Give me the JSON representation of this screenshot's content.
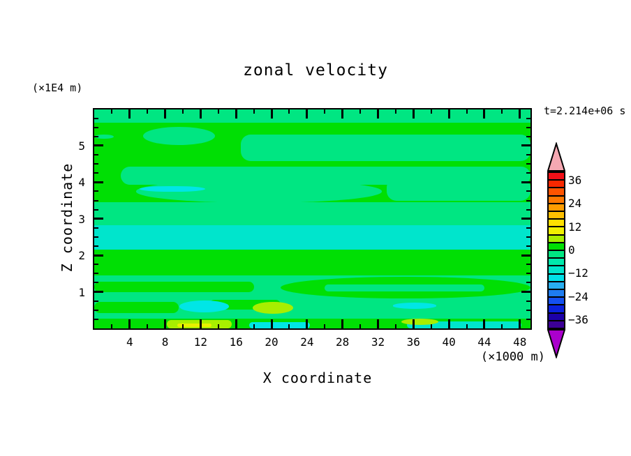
{
  "title": "zonal velocity",
  "left_unit_label": "(×1E4 m)",
  "time_label": "t=2.214e+06 s",
  "x_axis": {
    "label": "X coordinate",
    "unit": "(×1000 m)",
    "range": [
      0,
      49.2
    ],
    "minor_step": 2,
    "major_step": 4,
    "tick_labels": [
      4,
      8,
      12,
      16,
      20,
      24,
      28,
      32,
      36,
      40,
      44,
      48
    ]
  },
  "z_axis": {
    "label": "Z coordinate",
    "range": [
      0,
      5.99
    ],
    "minor_step": 0.25,
    "major_step": 1,
    "tick_labels": [
      1,
      2,
      3,
      4,
      5
    ]
  },
  "colorbar": {
    "labels": [
      36,
      24,
      12,
      0,
      -12,
      -24,
      -36
    ],
    "level_step": 4,
    "top_arrow_color": "#F5A8B2",
    "bottom_arrow_color": "#AA00CC",
    "segments": [
      {
        "range": [
          36,
          40
        ],
        "color": "#F01018"
      },
      {
        "range": [
          32,
          36
        ],
        "color": "#F82800"
      },
      {
        "range": [
          28,
          32
        ],
        "color": "#FF5400"
      },
      {
        "range": [
          24,
          28
        ],
        "color": "#FF7800"
      },
      {
        "range": [
          20,
          24
        ],
        "color": "#FF9C00"
      },
      {
        "range": [
          16,
          20
        ],
        "color": "#FFC000"
      },
      {
        "range": [
          12,
          16
        ],
        "color": "#FFE000"
      },
      {
        "range": [
          8,
          12
        ],
        "color": "#F0F000"
      },
      {
        "range": [
          4,
          8
        ],
        "color": "#A8EE00"
      },
      {
        "range": [
          0,
          4
        ],
        "color": "#00DF04"
      },
      {
        "range": [
          -4,
          0
        ],
        "color": "#00E682"
      },
      {
        "range": [
          -8,
          -4
        ],
        "color": "#00E9AC"
      },
      {
        "range": [
          -12,
          -8
        ],
        "color": "#00E5CC"
      },
      {
        "range": [
          -16,
          -12
        ],
        "color": "#00E0E8"
      },
      {
        "range": [
          -20,
          -16
        ],
        "color": "#28AEF0"
      },
      {
        "range": [
          -24,
          -20
        ],
        "color": "#1E7CF0"
      },
      {
        "range": [
          -28,
          -24
        ],
        "color": "#1450F0"
      },
      {
        "range": [
          -32,
          -28
        ],
        "color": "#0A20DC"
      },
      {
        "range": [
          -36,
          -32
        ],
        "color": "#1C00A8"
      },
      {
        "range": [
          -40,
          -36
        ],
        "color": "#3C0096"
      }
    ]
  },
  "chart_data": {
    "type": "heatmap",
    "title": "zonal velocity",
    "xlabel": "X coordinate",
    "ylabel": "Z coordinate",
    "x_unit": "(×1000 m)",
    "y_unit": "(×1E4 m)",
    "time_annotation": "t=2.214e+06 s",
    "x_range": [
      0,
      49.2
    ],
    "z_range": [
      0,
      5.99
    ],
    "contour_interval": 4,
    "colorbar_labeled_levels": [
      36,
      24,
      12,
      0,
      -12,
      -24,
      -36
    ],
    "x_columns": [
      2,
      6,
      10,
      14,
      18,
      22,
      26,
      30,
      34,
      38,
      42,
      46
    ],
    "z_rows": [
      5.8,
      5.2,
      4.7,
      4.2,
      3.6,
      3.1,
      2.5,
      1.9,
      1.3,
      0.9,
      0.5,
      0.1
    ],
    "approx_values_mps": [
      [
        -2,
        -2,
        -2,
        -2,
        -2,
        -2,
        -2,
        -2,
        -2,
        -2,
        -2,
        -2
      ],
      [
        2,
        -2,
        -2,
        2,
        2,
        2,
        2,
        2,
        2,
        2,
        2,
        2
      ],
      [
        2,
        2,
        2,
        2,
        -2,
        -2,
        -2,
        -2,
        -2,
        -2,
        -2,
        -2
      ],
      [
        -2,
        -2,
        -2,
        -2,
        -2,
        -2,
        -2,
        -2,
        -2,
        -2,
        -2,
        -2
      ],
      [
        2,
        -14,
        -14,
        -2,
        -2,
        -2,
        -2,
        -2,
        -2,
        -2,
        -2,
        -2
      ],
      [
        -2,
        -2,
        -2,
        -2,
        -2,
        -2,
        -2,
        -2,
        -2,
        -2,
        -2,
        -2
      ],
      [
        -10,
        -10,
        -10,
        -10,
        -10,
        -10,
        -10,
        -10,
        -10,
        -10,
        -10,
        -10
      ],
      [
        2,
        2,
        2,
        2,
        2,
        2,
        2,
        2,
        2,
        2,
        2,
        2
      ],
      [
        2,
        2,
        2,
        2,
        -2,
        2,
        2,
        2,
        2,
        2,
        2,
        2
      ],
      [
        -2,
        -2,
        -2,
        -2,
        -2,
        2,
        2,
        2,
        2,
        2,
        2,
        2
      ],
      [
        2,
        2,
        -14,
        -14,
        10,
        10,
        -2,
        -2,
        -14,
        -14,
        -2,
        -2
      ],
      [
        2,
        2,
        10,
        10,
        -14,
        -14,
        2,
        2,
        10,
        10,
        -10,
        -10
      ]
    ],
    "regions": [
      {
        "x": [
          0,
          49.2
        ],
        "z": [
          5.62,
          5.99
        ],
        "value_range": [
          -4,
          0
        ],
        "color": "#00E682",
        "shape": "strip"
      },
      {
        "x": [
          5.5,
          13.6
        ],
        "z": [
          5.02,
          5.52
        ],
        "value_range": [
          -4,
          0
        ],
        "color": "#00E682",
        "shape": "ellipse"
      },
      {
        "x": [
          16.5,
          49.2
        ],
        "z": [
          4.58,
          5.3
        ],
        "value_range": [
          -4,
          0
        ],
        "color": "#00E682",
        "shape": "band"
      },
      {
        "x": [
          0,
          2.2
        ],
        "z": [
          5.18,
          5.3
        ],
        "value_range": [
          -4,
          0
        ],
        "color": "#00E682",
        "shape": "ellipse"
      },
      {
        "x": [
          3,
          49.2
        ],
        "z": [
          3.93,
          4.43
        ],
        "value_range": [
          -4,
          0
        ],
        "color": "#00E682",
        "shape": "band"
      },
      {
        "x": [
          4.7,
          32.4
        ],
        "z": [
          3.44,
          4.06
        ],
        "value_range": [
          -4,
          0
        ],
        "color": "#00E682",
        "shape": "ellipse"
      },
      {
        "x": [
          33,
          49.2
        ],
        "z": [
          3.5,
          4.12
        ],
        "value_range": [
          -4,
          0
        ],
        "color": "#00E682",
        "shape": "band"
      },
      {
        "x": [
          5.1,
          12.5
        ],
        "z": [
          3.73,
          3.9
        ],
        "value_range": [
          -16,
          -12
        ],
        "color": "#00E6E6",
        "shape": "ellipse"
      },
      {
        "x": [
          0,
          49.2
        ],
        "z": [
          2.75,
          3.46
        ],
        "value_range": [
          -4,
          0
        ],
        "color": "#00E682",
        "shape": "strip"
      },
      {
        "x": [
          0,
          49.2
        ],
        "z": [
          2.16,
          2.82
        ],
        "value_range": [
          -12,
          -8
        ],
        "color": "#00E5CC",
        "shape": "strip"
      },
      {
        "x": [
          0,
          49.2
        ],
        "z": [
          0.2,
          1.45
        ],
        "value_range": [
          -4,
          0
        ],
        "color": "#00E682",
        "shape": "strip"
      },
      {
        "x": [
          0,
          18
        ],
        "z": [
          1.0,
          1.28
        ],
        "value_range": [
          0,
          4
        ],
        "color": "#00DF04",
        "shape": "band"
      },
      {
        "x": [
          21,
          49.2
        ],
        "z": [
          0.82,
          1.42
        ],
        "value_range": [
          0,
          4
        ],
        "color": "#00DF04",
        "shape": "ellipse"
      },
      {
        "x": [
          26,
          44
        ],
        "z": [
          1.02,
          1.2
        ],
        "value_range": [
          -4,
          0
        ],
        "color": "#00E682",
        "shape": "band"
      },
      {
        "x": [
          0,
          9.5
        ],
        "z": [
          0.42,
          0.72
        ],
        "value_range": [
          0,
          4
        ],
        "color": "#00DF04",
        "shape": "band"
      },
      {
        "x": [
          13,
          21
        ],
        "z": [
          0.52,
          0.78
        ],
        "value_range": [
          0,
          4
        ],
        "color": "#00DF04",
        "shape": "band"
      },
      {
        "x": [
          0,
          49.2
        ],
        "z": [
          0,
          0.26
        ],
        "value_range": [
          0,
          4
        ],
        "color": "#00DF04",
        "shape": "strip"
      },
      {
        "x": [
          9.6,
          15.2
        ],
        "z": [
          0.44,
          0.76
        ],
        "value_range": [
          -16,
          -12
        ],
        "color": "#00E6E6",
        "shape": "ellipse"
      },
      {
        "x": [
          17.9,
          22.4
        ],
        "z": [
          0.4,
          0.73
        ],
        "value_range": [
          4,
          12
        ],
        "color": "#A8EE00",
        "shape": "ellipse"
      },
      {
        "x": [
          33.7,
          38.6
        ],
        "z": [
          0.54,
          0.7
        ],
        "value_range": [
          -16,
          -12
        ],
        "color": "#00E6E6",
        "shape": "ellipse"
      },
      {
        "x": [
          8.2,
          15.5
        ],
        "z": [
          0,
          0.22
        ],
        "value_range": [
          4,
          12
        ],
        "color": "#A8EE00",
        "shape": "band"
      },
      {
        "x": [
          9.4,
          13.2
        ],
        "z": [
          0.03,
          0.13
        ],
        "value_range": [
          8,
          12
        ],
        "color": "#E8F000",
        "shape": "band"
      },
      {
        "x": [
          17.5,
          24.3
        ],
        "z": [
          0,
          0.17
        ],
        "value_range": [
          -16,
          -12
        ],
        "color": "#00E6E6",
        "shape": "band"
      },
      {
        "x": [
          35.3,
          48.2
        ],
        "z": [
          0,
          0.2
        ],
        "value_range": [
          -12,
          -8
        ],
        "color": "#00E5CC",
        "shape": "band"
      },
      {
        "x": [
          34.6,
          38.8
        ],
        "z": [
          0.1,
          0.27
        ],
        "value_range": [
          4,
          12
        ],
        "color": "#A8EE00",
        "shape": "ellipse"
      }
    ]
  }
}
